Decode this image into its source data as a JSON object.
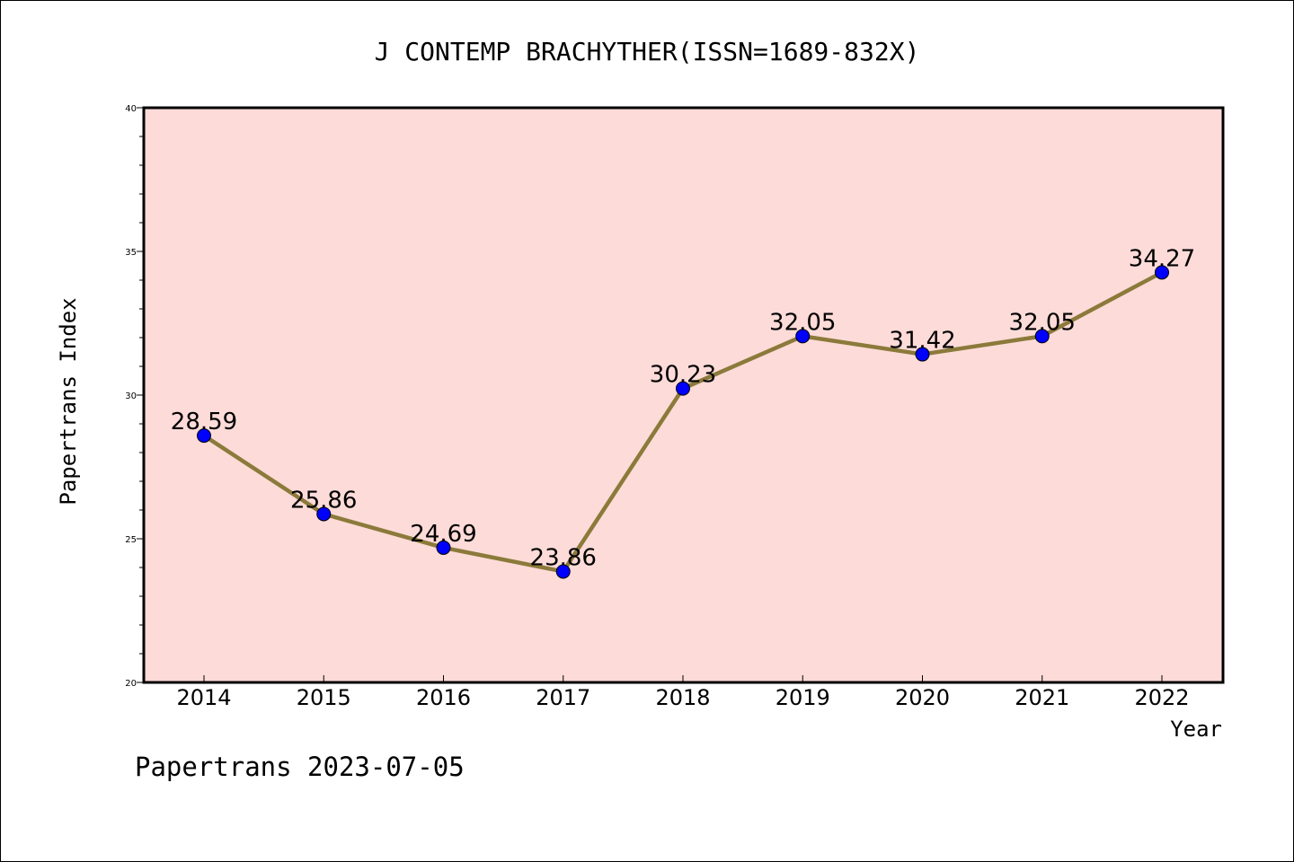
{
  "chart_data": {
    "type": "line",
    "title": "J CONTEMP BRACHYTHER(ISSN=1689-832X)",
    "xlabel": "Year",
    "ylabel": "Papertrans Index",
    "categories": [
      "2014",
      "2015",
      "2016",
      "2017",
      "2018",
      "2019",
      "2020",
      "2021",
      "2022"
    ],
    "values": [
      28.59,
      25.86,
      24.69,
      23.86,
      30.23,
      32.05,
      31.42,
      32.05,
      34.27
    ],
    "data_labels": [
      "28.59",
      "25.86",
      "24.69",
      "23.86",
      "30.23",
      "32.05",
      "31.42",
      "32.05",
      "34.27"
    ],
    "ylim": [
      20,
      40
    ],
    "yticks": [
      "20",
      "25",
      "30",
      "35",
      "40"
    ],
    "grid": false,
    "legend": "none",
    "colors": {
      "plot_background": "#fddbd8",
      "line": "#8b7a3a",
      "marker": "#0000ff"
    }
  },
  "footer": {
    "text": "Papertrans 2023-07-05"
  }
}
